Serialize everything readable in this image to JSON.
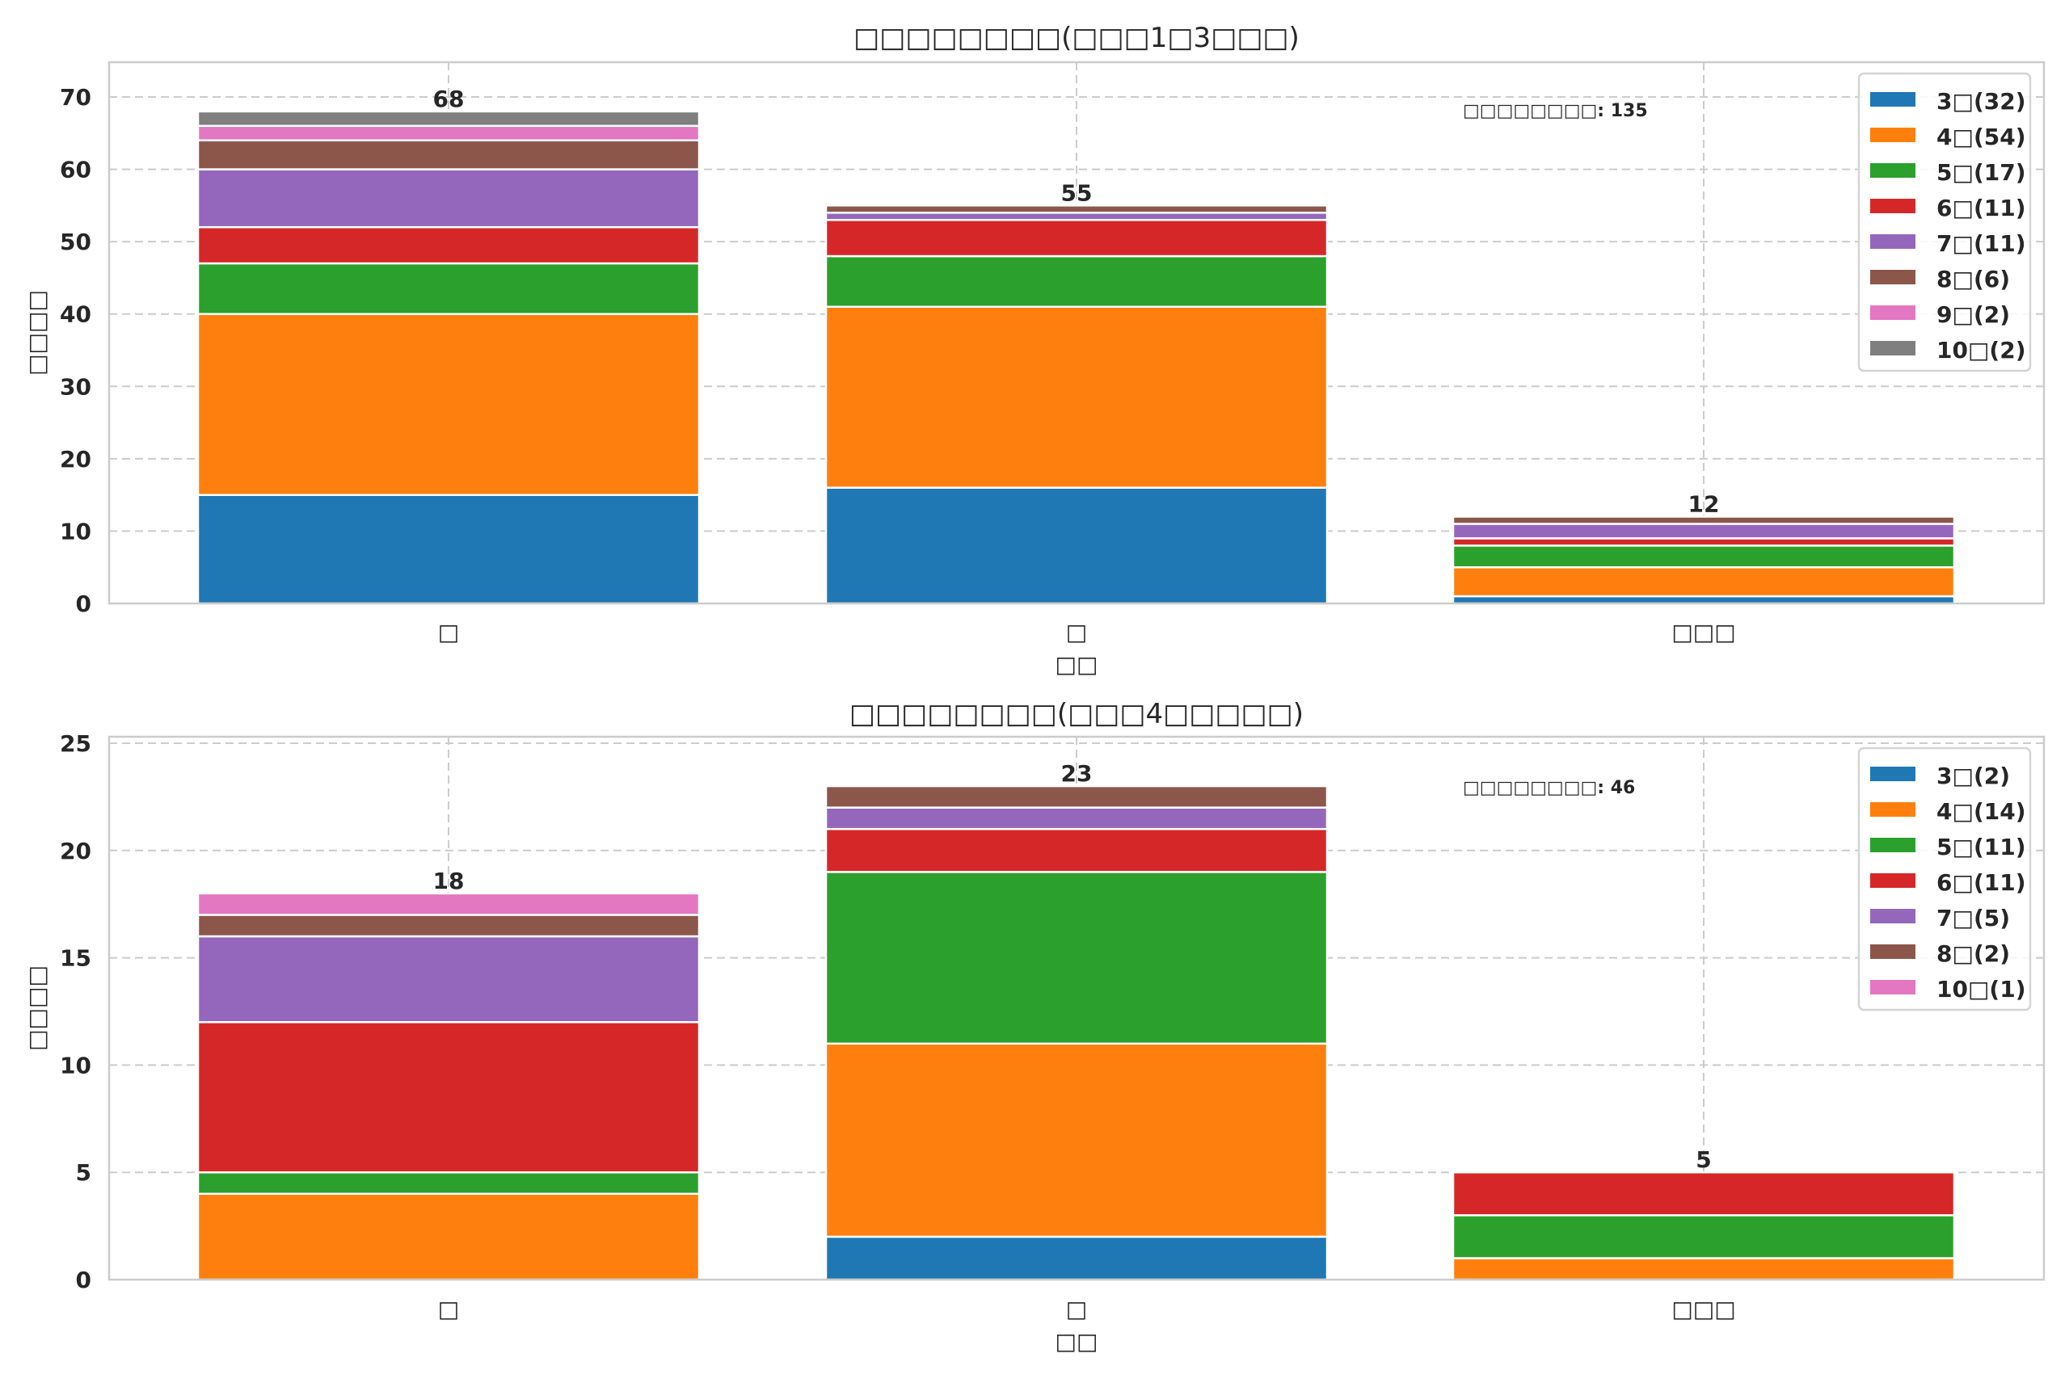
{
  "chart_data": [
    {
      "type": "bar",
      "stacked": true,
      "title": "□□□□□□□□(□□□1□3□□□)",
      "xlabel": "□□",
      "ylabel": "□□□□",
      "categories": [
        "□",
        "□",
        "□□□"
      ],
      "ylim": [
        0,
        74.8
      ],
      "yticks": [
        0,
        10,
        20,
        30,
        40,
        50,
        60,
        70
      ],
      "grid": true,
      "legend_position": "top-right",
      "annotation": "□□□□□□□□: 135",
      "totals": [
        68,
        55,
        12
      ],
      "series": [
        {
          "name": "3□(32)",
          "color": "#1f77b4",
          "values": [
            15,
            16,
            1
          ]
        },
        {
          "name": "4□(54)",
          "color": "#ff7f0e",
          "values": [
            25,
            25,
            4
          ]
        },
        {
          "name": "5□(17)",
          "color": "#2ca02c",
          "values": [
            7,
            7,
            3
          ]
        },
        {
          "name": "6□(11)",
          "color": "#d62728",
          "values": [
            5,
            5,
            1
          ]
        },
        {
          "name": "7□(11)",
          "color": "#9467bd",
          "values": [
            8,
            1,
            2
          ]
        },
        {
          "name": "8□(6)",
          "color": "#8c564b",
          "values": [
            4,
            1,
            1
          ]
        },
        {
          "name": "9□(2)",
          "color": "#e377c2",
          "values": [
            2,
            0,
            0
          ]
        },
        {
          "name": "10□(2)",
          "color": "#7f7f7f",
          "values": [
            2,
            0,
            0
          ]
        }
      ]
    },
    {
      "type": "bar",
      "stacked": true,
      "title": "□□□□□□□□(□□□4□□□□□)",
      "xlabel": "□□",
      "ylabel": "□□□□",
      "categories": [
        "□",
        "□",
        "□□□"
      ],
      "ylim": [
        0,
        25.3
      ],
      "yticks": [
        0,
        5,
        10,
        15,
        20,
        25
      ],
      "grid": true,
      "legend_position": "top-right",
      "annotation": "□□□□□□□□: 46",
      "totals": [
        18,
        23,
        5
      ],
      "series": [
        {
          "name": "3□(2)",
          "color": "#1f77b4",
          "values": [
            0,
            2,
            0
          ]
        },
        {
          "name": "4□(14)",
          "color": "#ff7f0e",
          "values": [
            4,
            9,
            1
          ]
        },
        {
          "name": "5□(11)",
          "color": "#2ca02c",
          "values": [
            1,
            8,
            2
          ]
        },
        {
          "name": "6□(11)",
          "color": "#d62728",
          "values": [
            7,
            2,
            2
          ]
        },
        {
          "name": "7□(5)",
          "color": "#9467bd",
          "values": [
            4,
            1,
            0
          ]
        },
        {
          "name": "8□(2)",
          "color": "#8c564b",
          "values": [
            1,
            1,
            0
          ]
        },
        {
          "name": "10□(1)",
          "color": "#e377c2",
          "values": [
            1,
            0,
            0
          ]
        }
      ]
    }
  ]
}
